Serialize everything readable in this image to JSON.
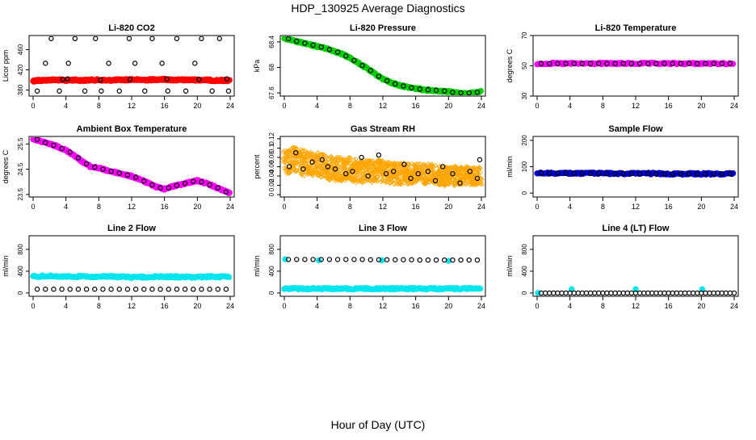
{
  "figure": {
    "title": "HDP_130925  Average Diagnostics",
    "xlabel": "Hour of Day (UTC)",
    "xticks": [
      "0",
      "4",
      "8",
      "12",
      "16",
      "20",
      "24"
    ]
  },
  "chart_data": [
    {
      "type": "scatter",
      "title": "Li-820 CO2",
      "ylabel": "Licor ppm",
      "xlim": [
        0,
        24
      ],
      "ylim": [
        368,
        488
      ],
      "yticks": [
        380,
        420,
        460
      ],
      "series": [
        {
          "color": "#ff0000",
          "marker": "filled-dense",
          "x": [
            0,
            0.5,
            1,
            2,
            3,
            4,
            5,
            6,
            7,
            8,
            9,
            10,
            11,
            12,
            13,
            14,
            15,
            16,
            17,
            18,
            19,
            20,
            21,
            22,
            23,
            24
          ],
          "y": [
            398,
            399,
            399,
            400,
            400,
            399,
            400,
            399,
            400,
            400,
            399,
            400,
            400,
            401,
            400,
            400,
            401,
            401,
            400,
            400,
            400,
            400,
            400,
            399,
            399,
            399
          ]
        },
        {
          "color": "#000000",
          "marker": "open-circle",
          "x": [
            0.5,
            1.5,
            2.2,
            3.2,
            4.3,
            5.1,
            6.3,
            7.6,
            8.3,
            9.2,
            10.5,
            11.7,
            12.4,
            13.6,
            14.5,
            15.7,
            16.4,
            17.5,
            18.6,
            19.7,
            20.5,
            21.8,
            22.7,
            23.8
          ],
          "y": [
            378,
            433,
            482,
            378,
            433,
            482,
            378,
            482,
            378,
            433,
            378,
            482,
            433,
            378,
            482,
            433,
            378,
            482,
            378,
            433,
            482,
            378,
            482,
            378
          ]
        },
        {
          "color": "#000000",
          "marker": "open-circle",
          "x": [
            3.6,
            4.2,
            8.2,
            11.8,
            16.3,
            20.2,
            23.6
          ],
          "y": [
            401,
            402,
            400,
            401,
            402,
            401,
            402
          ]
        }
      ]
    },
    {
      "type": "scatter",
      "title": "Li-820 Pressure",
      "ylabel": "kPa",
      "xlim": [
        0,
        24
      ],
      "ylim": [
        67.55,
        68.5
      ],
      "yticks": [
        67.6,
        68.0,
        68.4
      ],
      "series": [
        {
          "color": "#00cc00",
          "marker": "filled-dense",
          "x": [
            0,
            1,
            2,
            3,
            4,
            5,
            6,
            7,
            8,
            9,
            10,
            11,
            12,
            13,
            14,
            15,
            16,
            17,
            18,
            19,
            20,
            21,
            22,
            23,
            24
          ],
          "y": [
            68.46,
            68.42,
            68.39,
            68.36,
            68.33,
            68.3,
            68.26,
            68.21,
            68.15,
            68.07,
            67.99,
            67.9,
            67.82,
            67.76,
            67.72,
            67.69,
            67.67,
            67.65,
            67.64,
            67.63,
            67.62,
            67.6,
            67.59,
            67.6,
            67.62
          ]
        },
        {
          "color": "#000000",
          "marker": "open-circle",
          "x": [
            0.5,
            1.5,
            2.5,
            3.5,
            4.5,
            5.5,
            6.5,
            7.5,
            8.5,
            9.5,
            10.5,
            11.5,
            12.5,
            13.5,
            14.5,
            15.5,
            16.5,
            17.5,
            18.5,
            19.5,
            20.5,
            21.5,
            22.5,
            23.5
          ],
          "y": [
            68.45,
            68.41,
            68.38,
            68.35,
            68.32,
            68.28,
            68.24,
            68.18,
            68.11,
            68.03,
            67.95,
            67.86,
            67.79,
            67.74,
            67.71,
            67.68,
            67.66,
            67.65,
            67.64,
            67.63,
            67.61,
            67.6,
            67.6,
            67.61
          ]
        }
      ]
    },
    {
      "type": "scatter",
      "title": "Li-820 Temperature",
      "ylabel": "degrees C",
      "xlim": [
        0,
        24
      ],
      "ylim": [
        30,
        70
      ],
      "yticks": [
        30,
        50,
        70
      ],
      "series": [
        {
          "color": "#ff00ff",
          "marker": "filled-dense",
          "x": [
            0,
            2,
            4,
            6,
            8,
            10,
            12,
            14,
            16,
            18,
            20,
            22,
            24
          ],
          "y": [
            51.5,
            51.5,
            51.5,
            51.5,
            51.5,
            51.5,
            51.5,
            51.5,
            51.5,
            51.5,
            51.5,
            51.5,
            51.5
          ]
        },
        {
          "color": "#000000",
          "marker": "open-circle",
          "x": [
            0.5,
            1.5,
            2.5,
            3.5,
            4.5,
            5.5,
            6.5,
            7.5,
            8.5,
            9.5,
            10.5,
            11.5,
            12.5,
            13.5,
            14.5,
            15.5,
            16.5,
            17.5,
            18.5,
            19.5,
            20.5,
            21.5,
            22.5,
            23.5
          ],
          "y": [
            51.5,
            51.5,
            51.5,
            51.5,
            51.5,
            51.5,
            51.5,
            51.5,
            51.5,
            51.5,
            51.5,
            51.5,
            51.5,
            51.5,
            51.5,
            51.5,
            51.5,
            51.5,
            51.5,
            51.5,
            51.5,
            51.5,
            51.5,
            51.5
          ]
        }
      ]
    },
    {
      "type": "scatter",
      "title": "Ambient Box Temperature",
      "ylabel": "degrees C",
      "xlim": [
        0,
        24
      ],
      "ylim": [
        23.4,
        25.8
      ],
      "yticks": [
        23.5,
        24.5,
        25.5
      ],
      "series": [
        {
          "color": "#ff00ff",
          "marker": "filled-dense",
          "x": [
            0,
            1,
            2,
            3,
            4,
            5,
            6,
            7,
            8,
            9,
            10,
            11,
            12,
            13,
            14,
            15,
            16,
            17,
            18,
            19,
            20,
            21,
            22,
            23,
            24
          ],
          "y": [
            25.7,
            25.6,
            25.5,
            25.4,
            25.25,
            25.05,
            24.8,
            24.6,
            24.55,
            24.45,
            24.38,
            24.3,
            24.22,
            24.1,
            23.95,
            23.8,
            23.72,
            23.82,
            23.9,
            23.98,
            24.05,
            23.95,
            23.82,
            23.68,
            23.55
          ]
        },
        {
          "color": "#000000",
          "marker": "open-circle",
          "x": [
            0.5,
            1.5,
            2.5,
            3.5,
            4.5,
            5.5,
            6.5,
            7.5,
            8.5,
            9.5,
            10.5,
            11.5,
            12.5,
            13.5,
            14.5,
            15.5,
            16.5,
            17.5,
            18.5,
            19.5,
            20.5,
            21.5,
            22.5,
            23.5
          ],
          "y": [
            25.68,
            25.55,
            25.45,
            25.32,
            25.18,
            24.95,
            24.72,
            24.58,
            24.5,
            24.42,
            24.35,
            24.27,
            24.18,
            24.03,
            23.88,
            23.76,
            23.76,
            23.86,
            23.94,
            24.02,
            24.0,
            23.88,
            23.76,
            23.6
          ]
        }
      ]
    },
    {
      "type": "scatter",
      "title": "Gas Stream RH",
      "ylabel": "percent",
      "xlim": [
        0,
        24
      ],
      "ylim": [
        -0.005,
        0.125
      ],
      "yticks": [
        0.0,
        0.02,
        0.04,
        0.06,
        0.08,
        0.1,
        0.12
      ],
      "series": [
        {
          "color": "#ffa500",
          "marker": "open-diamond-cloud",
          "x": [
            0,
            1,
            2,
            3,
            4,
            5,
            6,
            7,
            8,
            9,
            10,
            11,
            12,
            13,
            14,
            15,
            16,
            17,
            18,
            19,
            20,
            21,
            22,
            23,
            24
          ],
          "y": [
            0.07,
            0.075,
            0.07,
            0.065,
            0.065,
            0.06,
            0.055,
            0.055,
            0.055,
            0.05,
            0.05,
            0.05,
            0.05,
            0.045,
            0.045,
            0.045,
            0.045,
            0.045,
            0.045,
            0.04,
            0.04,
            0.04,
            0.04,
            0.04,
            0.04
          ]
        },
        {
          "color": "#000000",
          "marker": "open-circle",
          "x": [
            0.6,
            1.4,
            2.3,
            3.4,
            4.6,
            5.3,
            6.2,
            7.5,
            8.3,
            9.4,
            10.2,
            11.5,
            12.4,
            13.3,
            14.6,
            15.4,
            16.3,
            17.5,
            18.4,
            19.3,
            20.5,
            21.4,
            22.6,
            23.5,
            23.8
          ],
          "y": [
            0.06,
            0.09,
            0.055,
            0.07,
            0.075,
            0.06,
            0.055,
            0.045,
            0.05,
            0.08,
            0.04,
            0.085,
            0.045,
            0.05,
            0.065,
            0.035,
            0.045,
            0.05,
            0.03,
            0.06,
            0.045,
            0.025,
            0.05,
            0.035,
            0.075
          ]
        }
      ]
    },
    {
      "type": "scatter",
      "title": "Sample Flow",
      "ylabel": "ml/min",
      "xlim": [
        0,
        24
      ],
      "ylim": [
        -15,
        215
      ],
      "yticks": [
        0,
        100,
        200
      ],
      "series": [
        {
          "color": "#0000cc",
          "marker": "filled-dense",
          "x": [
            0,
            2,
            4,
            6,
            8,
            10,
            12,
            14,
            16,
            18,
            20,
            22,
            24
          ],
          "y": [
            76,
            75,
            75,
            75,
            75,
            74,
            74,
            74,
            73,
            73,
            73,
            73,
            73
          ]
        },
        {
          "color": "#000000",
          "marker": "open-circle",
          "x": [
            0.5,
            1.5,
            2.5,
            3.5,
            4.5,
            5.5,
            6.5,
            7.5,
            8.5,
            9.5,
            10.5,
            11.5,
            12.5,
            13.5,
            14.5,
            15.5,
            16.5,
            17.5,
            18.5,
            19.5,
            20.5,
            21.5,
            22.5,
            23.5
          ],
          "y": [
            76,
            75,
            75,
            75,
            75,
            75,
            74,
            74,
            74,
            74,
            74,
            74,
            74,
            74,
            73,
            73,
            73,
            73,
            73,
            73,
            73,
            73,
            73,
            73
          ]
        }
      ]
    },
    {
      "type": "scatter",
      "title": "Line 2 Flow",
      "ylabel": "ml/min",
      "xlim": [
        0,
        24
      ],
      "ylim": [
        -60,
        1050
      ],
      "yticks": [
        0,
        400,
        800
      ],
      "series": [
        {
          "color": "#00e5ee",
          "marker": "filled-dense",
          "x": [
            0,
            2,
            4,
            6,
            8,
            10,
            12,
            14,
            16,
            18,
            20,
            22,
            24
          ],
          "y": [
            305,
            310,
            300,
            305,
            300,
            300,
            290,
            295,
            300,
            295,
            290,
            300,
            295
          ]
        },
        {
          "color": "#000000",
          "marker": "open-circle",
          "x": [
            0.5,
            1.5,
            2.5,
            3.5,
            4.5,
            5.5,
            6.5,
            7.5,
            8.5,
            9.5,
            10.5,
            11.5,
            12.5,
            13.5,
            14.5,
            15.5,
            16.5,
            17.5,
            18.5,
            19.5,
            20.5,
            21.5,
            22.5,
            23.5
          ],
          "y": [
            70,
            70,
            70,
            70,
            70,
            70,
            70,
            70,
            70,
            70,
            70,
            70,
            70,
            70,
            70,
            70,
            70,
            70,
            70,
            70,
            70,
            70,
            70,
            70
          ]
        }
      ]
    },
    {
      "type": "scatter",
      "title": "Line 3 Flow",
      "ylabel": "ml/min",
      "xlim": [
        0,
        24
      ],
      "ylim": [
        -60,
        1050
      ],
      "yticks": [
        0,
        400,
        800
      ],
      "series": [
        {
          "color": "#00e5ee",
          "marker": "filled-dense",
          "x": [
            0,
            2,
            4,
            6,
            8,
            10,
            12,
            14,
            16,
            18,
            20,
            22,
            24
          ],
          "y": [
            80,
            80,
            80,
            80,
            80,
            80,
            80,
            80,
            80,
            80,
            80,
            80,
            80
          ]
        },
        {
          "color": "#00e5ee",
          "marker": "filled-circle",
          "x": [
            0.1,
            4.2,
            11.9,
            20.0
          ],
          "y": [
            620,
            600,
            600,
            590
          ]
        },
        {
          "color": "#000000",
          "marker": "open-circle",
          "x": [
            0.5,
            1.5,
            2.5,
            3.5,
            4.5,
            5.5,
            6.5,
            7.5,
            8.5,
            9.5,
            10.5,
            11.5,
            12.5,
            13.5,
            14.5,
            15.5,
            16.5,
            17.5,
            18.5,
            19.5,
            20.5,
            21.5,
            22.5,
            23.5
          ],
          "y": [
            615,
            615,
            615,
            615,
            615,
            615,
            615,
            615,
            615,
            615,
            610,
            610,
            610,
            610,
            610,
            610,
            605,
            605,
            605,
            605,
            605,
            605,
            605,
            605
          ]
        }
      ]
    },
    {
      "type": "scatter",
      "title": "Line 4 (LT) Flow",
      "ylabel": "ml/min",
      "xlim": [
        0,
        24
      ],
      "ylim": [
        -60,
        1050
      ],
      "yticks": [
        0,
        400,
        800
      ],
      "series": [
        {
          "color": "#00e5ee",
          "marker": "filled-circle",
          "x": [
            0.1,
            4.2,
            12.0,
            20.1
          ],
          "y": [
            2,
            70,
            70,
            70
          ]
        },
        {
          "color": "#000000",
          "marker": "open-circle",
          "x": [
            0.5,
            1.0,
            1.5,
            2.0,
            2.5,
            3.0,
            3.5,
            4.0,
            4.5,
            5.0,
            5.5,
            6.0,
            6.5,
            7.0,
            7.5,
            8.0,
            8.5,
            9.0,
            9.5,
            10.0,
            10.5,
            11.0,
            11.5,
            12.0,
            12.5,
            13.0,
            13.5,
            14.0,
            14.5,
            15.0,
            15.5,
            16.0,
            16.5,
            17.0,
            17.5,
            18.0,
            18.5,
            19.0,
            19.5,
            20.0,
            20.5,
            21.0,
            21.5,
            22.0,
            22.5,
            23.0,
            23.5,
            24.0
          ],
          "y": [
            0,
            0,
            0,
            0,
            0,
            0,
            0,
            0,
            0,
            0,
            0,
            0,
            0,
            0,
            0,
            0,
            0,
            0,
            0,
            0,
            0,
            0,
            0,
            0,
            0,
            0,
            0,
            0,
            0,
            0,
            0,
            0,
            0,
            0,
            0,
            0,
            0,
            0,
            0,
            0,
            0,
            0,
            0,
            0,
            0,
            0,
            0,
            0
          ]
        }
      ]
    }
  ]
}
